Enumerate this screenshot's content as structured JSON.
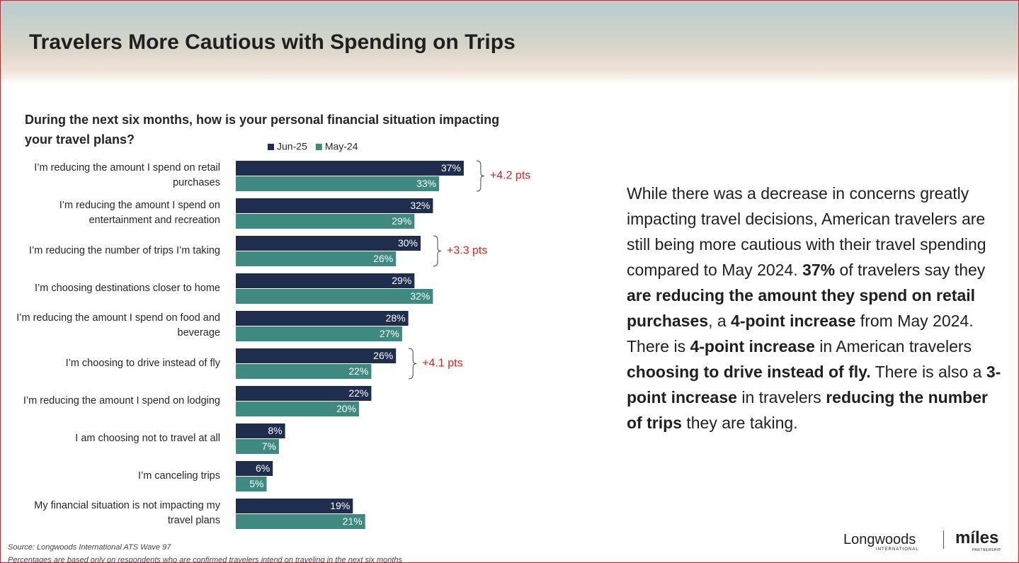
{
  "header": {
    "title": "Travelers More Cautious with Spending on Trips"
  },
  "chart_data": {
    "type": "bar",
    "orientation": "horizontal",
    "title": "During the next six months, how is your personal financial situation impacting your travel plans?",
    "categories": [
      "I’m reducing the amount I spend on retail purchases",
      "I’m reducing the amount I spend on entertainment and recreation",
      "I’m reducing the number of trips I’m taking",
      "I’m choosing destinations closer to home",
      "I’m reducing the amount I spend on food and beverage",
      "I’m choosing to drive instead of fly",
      "I’m reducing the amount I spend on lodging",
      "I am choosing not to travel at all",
      "I’m canceling trips",
      "My financial situation is not impacting my travel plans"
    ],
    "series": [
      {
        "name": "Jun-25",
        "color": "#1f2d4e",
        "values": [
          37,
          32,
          30,
          29,
          28,
          26,
          22,
          8,
          6,
          19
        ],
        "value_labels": [
          "37%",
          "32%",
          "30%",
          "29%",
          "28%",
          "26%",
          "22%",
          "8%",
          "6%",
          "19%"
        ]
      },
      {
        "name": "May-24",
        "color": "#3e8a80",
        "values": [
          33,
          29,
          26,
          32,
          27,
          22,
          20,
          7,
          5,
          21
        ],
        "value_labels": [
          "33%",
          "29%",
          "26%",
          "32%",
          "27%",
          "22%",
          "20%",
          "7%",
          "5%",
          "21%"
        ]
      }
    ],
    "annotations": [
      "+4.2 pts",
      null,
      "+3.3 pts",
      null,
      null,
      "+4.1 pts",
      null,
      null,
      null,
      null
    ],
    "annotation_color": "#e0201b",
    "legend": "top"
  },
  "summary": {
    "runs": [
      {
        "text": "While there was a decrease in concerns greatly impacting travel decisions, American travelers are still being more cautious with their travel spending compared to May 2024. ",
        "bold": false
      },
      {
        "text": "37%",
        "bold": true
      },
      {
        "text": " of travelers say they ",
        "bold": false
      },
      {
        "text": "are reducing the amount they spend on retail purchases",
        "bold": true
      },
      {
        "text": ", a ",
        "bold": false
      },
      {
        "text": "4-point increase",
        "bold": true
      },
      {
        "text": " from May 2024. There is ",
        "bold": false
      },
      {
        "text": "4-point increase",
        "bold": true
      },
      {
        "text": " in American travelers ",
        "bold": false
      },
      {
        "text": "choosing to drive instead of fly.",
        "bold": true
      },
      {
        "text": " There is also a ",
        "bold": false
      },
      {
        "text": "3-point increase",
        "bold": true
      },
      {
        "text": " in travelers ",
        "bold": false
      },
      {
        "text": "reducing the number of trips",
        "bold": true
      },
      {
        "text": " they are taking.",
        "bold": false
      }
    ]
  },
  "footer": {
    "source": "Source: Longwoods International ATS Wave 97",
    "note": "Percentages are based only on respondents who are confirmed travelers intend on traveling in the next six months"
  },
  "logos": {
    "longwoods": "Longwoods",
    "longwoods_sub": "INTERNATIONAL",
    "miles": "míles",
    "miles_sub": "PARTNERSHIP"
  }
}
